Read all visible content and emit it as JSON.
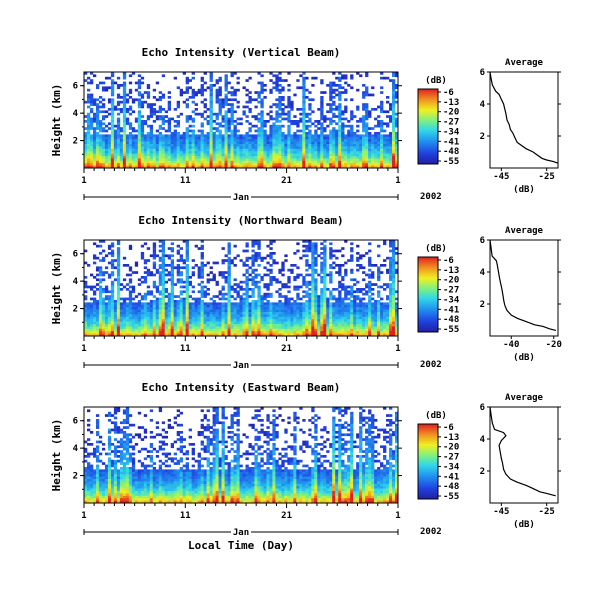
{
  "chart_data": [
    {
      "type": "heatmap",
      "title": "Echo Intensity (Vertical Beam)",
      "ylabel": "Height (km)",
      "yticks": [
        "6",
        "4",
        "2"
      ],
      "xticks": [
        "1",
        "11",
        "21",
        "1"
      ],
      "month_label": "Jan",
      "year_label": "2002",
      "xlabel": "",
      "colorbar": {
        "unit": "(dB)",
        "labels": [
          "-6",
          "-13",
          "-20",
          "-27",
          "-34",
          "-41",
          "-48",
          "-55"
        ]
      },
      "average": {
        "title": "Average",
        "xlabel": "(dB)",
        "xticks": [
          "-45",
          "-25"
        ],
        "yticks": [
          "6",
          "4",
          "2"
        ],
        "xlim": [
          -50,
          -20
        ],
        "ylim": [
          0,
          6
        ],
        "profile": [
          [
            -50,
            6.0
          ],
          [
            -49.5,
            5.6
          ],
          [
            -49,
            5.2
          ],
          [
            -47.5,
            4.8
          ],
          [
            -46,
            4.6
          ],
          [
            -45,
            4.3
          ],
          [
            -44,
            4.0
          ],
          [
            -43.5,
            3.7
          ],
          [
            -43,
            3.4
          ],
          [
            -42.5,
            3.0
          ],
          [
            -41.5,
            2.7
          ],
          [
            -41,
            2.4
          ],
          [
            -40,
            2.2
          ],
          [
            -39,
            1.9
          ],
          [
            -38,
            1.6
          ],
          [
            -36,
            1.4
          ],
          [
            -34,
            1.2
          ],
          [
            -31,
            1.0
          ],
          [
            -29,
            0.8
          ],
          [
            -27,
            0.6
          ],
          [
            -25,
            0.5
          ],
          [
            -22,
            0.4
          ],
          [
            -20,
            0.3
          ]
        ]
      }
    },
    {
      "type": "heatmap",
      "title": "Echo Intensity (Northward Beam)",
      "ylabel": "Height (km)",
      "yticks": [
        "6",
        "4",
        "2"
      ],
      "xticks": [
        "1",
        "11",
        "21",
        "1"
      ],
      "month_label": "Jan",
      "year_label": "2002",
      "xlabel": "",
      "colorbar": {
        "unit": "(dB)",
        "labels": [
          "-6",
          "-13",
          "-20",
          "-27",
          "-34",
          "-41",
          "-48",
          "-55"
        ]
      },
      "average": {
        "title": "Average",
        "xlabel": "(dB)",
        "xticks": [
          "-40",
          "-20"
        ],
        "yticks": [
          "6",
          "4",
          "2"
        ],
        "xlim": [
          -50,
          -18
        ],
        "ylim": [
          0,
          6
        ],
        "profile": [
          [
            -50,
            6.0
          ],
          [
            -49.5,
            5.5
          ],
          [
            -49,
            5.0
          ],
          [
            -47,
            4.7
          ],
          [
            -46.5,
            4.4
          ],
          [
            -46,
            4.0
          ],
          [
            -45.5,
            3.6
          ],
          [
            -45,
            3.3
          ],
          [
            -44.5,
            3.0
          ],
          [
            -44,
            2.6
          ],
          [
            -43.5,
            2.2
          ],
          [
            -43,
            1.9
          ],
          [
            -42,
            1.6
          ],
          [
            -40,
            1.3
          ],
          [
            -37,
            1.1
          ],
          [
            -33,
            0.9
          ],
          [
            -29,
            0.7
          ],
          [
            -25,
            0.6
          ],
          [
            -22,
            0.45
          ],
          [
            -19,
            0.35
          ]
        ]
      }
    },
    {
      "type": "heatmap",
      "title": "Echo Intensity (Eastward Beam)",
      "ylabel": "Height (km)",
      "yticks": [
        "6",
        "4",
        "2"
      ],
      "xticks": [
        "1",
        "11",
        "21",
        "1"
      ],
      "month_label": "Jan",
      "year_label": "2002",
      "xlabel": "Local Time (Day)",
      "colorbar": {
        "unit": "(dB)",
        "labels": [
          "-6",
          "-13",
          "-20",
          "-27",
          "-34",
          "-41",
          "-48",
          "-55"
        ]
      },
      "average": {
        "title": "Average",
        "xlabel": "(dB)",
        "xticks": [
          "-45",
          "-25"
        ],
        "yticks": [
          "6",
          "4",
          "2"
        ],
        "xlim": [
          -50,
          -20
        ],
        "ylim": [
          0,
          6
        ],
        "profile": [
          [
            -50,
            6.0
          ],
          [
            -49.5,
            5.5
          ],
          [
            -49,
            5.0
          ],
          [
            -48,
            4.6
          ],
          [
            -44,
            4.4
          ],
          [
            -43,
            4.2
          ],
          [
            -45,
            3.9
          ],
          [
            -46,
            3.6
          ],
          [
            -45.5,
            3.2
          ],
          [
            -45,
            2.8
          ],
          [
            -44.5,
            2.5
          ],
          [
            -44,
            2.1
          ],
          [
            -43,
            1.8
          ],
          [
            -41,
            1.5
          ],
          [
            -38,
            1.3
          ],
          [
            -34,
            1.1
          ],
          [
            -31,
            0.9
          ],
          [
            -28,
            0.7
          ],
          [
            -25,
            0.6
          ],
          [
            -21,
            0.45
          ]
        ]
      }
    }
  ]
}
